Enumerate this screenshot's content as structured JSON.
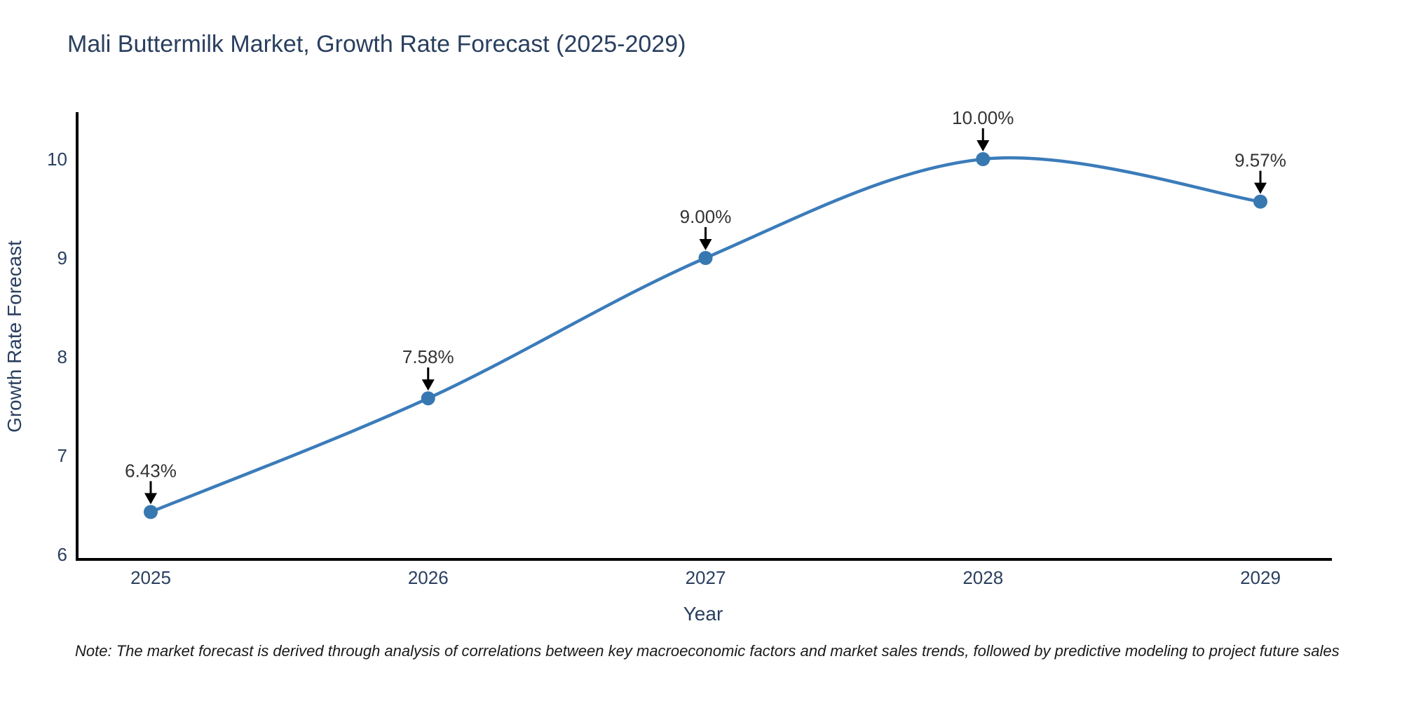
{
  "note": {
    "text": "Note: The market forecast is derived through analysis of correlations between key macroeconomic factors and market sales trends, followed by predictive modeling to project future sales"
  },
  "chart_data": {
    "type": "line",
    "title": "Mali Buttermilk Market, Growth Rate Forecast (2025-2029)",
    "xlabel": "Year",
    "ylabel": "Growth Rate Forecast",
    "categories": [
      "2025",
      "2026",
      "2027",
      "2028",
      "2029"
    ],
    "series": [
      {
        "name": "Growth Rate Forecast",
        "values": [
          6.43,
          7.58,
          9.0,
          10.0,
          9.57
        ],
        "point_labels": [
          "6.43%",
          "7.58%",
          "9.00%",
          "10.00%",
          "9.57%"
        ]
      }
    ],
    "y_ticks": [
      6,
      7,
      8,
      9,
      10
    ],
    "ylim": [
      5.95,
      10.48
    ],
    "line_shape": "spline",
    "grid": false,
    "legend_position": "none",
    "colors": {
      "line": "#3b7cba",
      "marker": "#3778b0",
      "axis": "#000000",
      "axis_text": "#2a3f5f",
      "point_label_text": "#333333",
      "annotation_arrow": "#000000",
      "title_text": "#2a3f5f"
    }
  }
}
